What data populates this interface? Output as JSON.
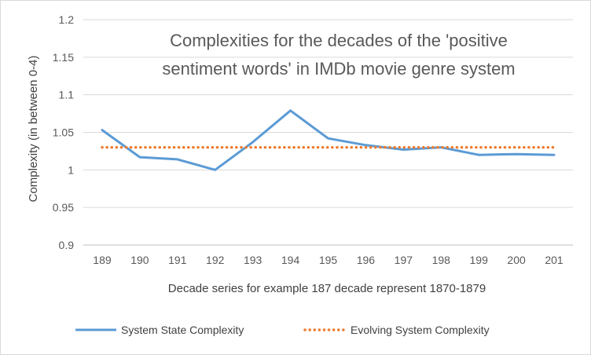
{
  "chart_data": {
    "type": "line",
    "title_lines": [
      "Complexities for the decades of the 'positive",
      "sentiment words' in IMDb movie genre system"
    ],
    "xlabel": "Decade series for example 187 decade represent 1870-1879",
    "ylabel": "Complexity (in between 0-4)",
    "categories": [
      "189",
      "190",
      "191",
      "192",
      "193",
      "194",
      "195",
      "196",
      "197",
      "198",
      "199",
      "200",
      "201"
    ],
    "ylim": [
      0.9,
      1.2
    ],
    "yticks": [
      0.9,
      0.95,
      1,
      1.05,
      1.1,
      1.15,
      1.2
    ],
    "ytick_labels": [
      "0.9",
      "0.95",
      "1",
      "1.05",
      "1.1",
      "1.15",
      "1.2"
    ],
    "grid": "horizontal",
    "legend_position": "bottom",
    "series": [
      {
        "name": "System State Complexity",
        "style": "solid",
        "color": "#5b9bd5",
        "values": [
          1.053,
          1.017,
          1.014,
          1.0,
          1.037,
          1.079,
          1.042,
          1.033,
          1.027,
          1.03,
          1.02,
          1.021,
          1.02
        ]
      },
      {
        "name": "Evolving System Complexity",
        "style": "dotted",
        "color": "#ed7d31",
        "values": [
          1.03,
          1.03,
          1.03,
          1.03,
          1.03,
          1.03,
          1.03,
          1.03,
          1.03,
          1.03,
          1.03,
          1.03,
          1.03
        ]
      }
    ]
  }
}
